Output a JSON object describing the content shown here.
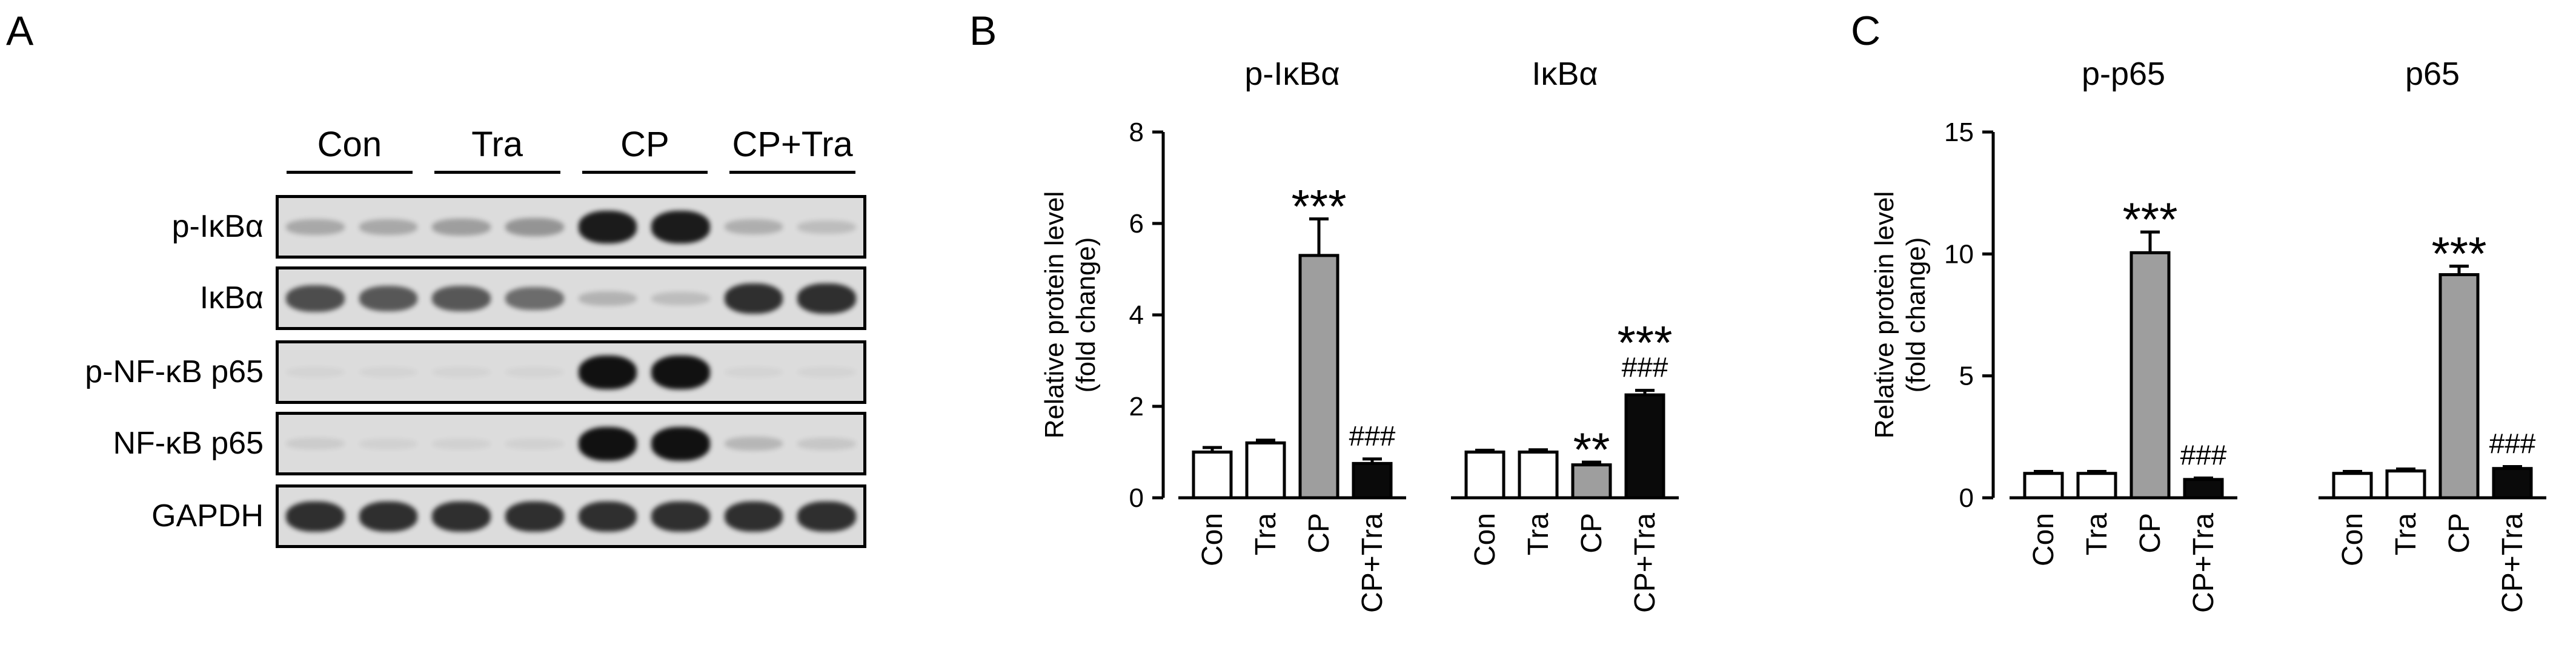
{
  "panel_labels": {
    "a": "A",
    "b": "B",
    "c": "C"
  },
  "blot": {
    "groups": [
      "Con",
      "Tra",
      "CP",
      "CP+Tra"
    ],
    "rows": [
      {
        "label": "p-IκBα",
        "band": [
          0.25,
          0.25,
          0.3,
          0.35,
          0.95,
          0.95,
          0.22,
          0.15
        ]
      },
      {
        "label": "IκBα",
        "band": [
          0.7,
          0.65,
          0.65,
          0.55,
          0.2,
          0.15,
          0.85,
          0.85
        ]
      },
      {
        "label": "p-NF-κB p65",
        "band": [
          0.04,
          0.04,
          0.03,
          0.03,
          1.0,
          1.0,
          0.02,
          0.02
        ]
      },
      {
        "label": "NF-κB p65",
        "band": [
          0.08,
          0.05,
          0.05,
          0.05,
          1.0,
          1.0,
          0.18,
          0.1
        ]
      },
      {
        "label": "GAPDH",
        "band": [
          0.85,
          0.85,
          0.85,
          0.85,
          0.85,
          0.85,
          0.85,
          0.85
        ]
      }
    ]
  },
  "chart_data": [
    {
      "type": "bar",
      "panel": "B",
      "ylabel": "Relative protein level\n(fold change)",
      "ylim": [
        0,
        8
      ],
      "yticks": [
        0,
        2,
        4,
        6,
        8
      ],
      "grid": false,
      "groups": [
        {
          "title": "p-IκBα",
          "categories": [
            "Con",
            "Tra",
            "CP",
            "CP+Tra"
          ],
          "values": [
            1.0,
            1.2,
            5.3,
            0.75
          ],
          "errors": [
            0.1,
            0.06,
            0.8,
            0.1
          ],
          "annotations": [
            "",
            "",
            "***",
            "###"
          ]
        },
        {
          "title": "IκBα",
          "categories": [
            "Con",
            "Tra",
            "CP",
            "CP+Tra"
          ],
          "values": [
            1.0,
            1.0,
            0.72,
            2.25
          ],
          "errors": [
            0.04,
            0.05,
            0.06,
            0.1
          ],
          "annotations": [
            "",
            "",
            "**",
            "***\n###"
          ]
        }
      ],
      "bar_colors": [
        "#ffffff",
        "#ffffff",
        "#9e9e9e",
        "#0a0a0a"
      ]
    },
    {
      "type": "bar",
      "panel": "C",
      "ylabel": "Relative protein level\n(fold change)",
      "ylim": [
        0,
        15
      ],
      "yticks": [
        0,
        5,
        10,
        15
      ],
      "grid": false,
      "groups": [
        {
          "title": "p-p65",
          "categories": [
            "Con",
            "Tra",
            "CP",
            "CP+Tra"
          ],
          "values": [
            1.0,
            1.0,
            10.05,
            0.75
          ],
          "errors": [
            0.08,
            0.08,
            0.85,
            0.06
          ],
          "annotations": [
            "",
            "",
            "***",
            "###"
          ]
        },
        {
          "title": "p65",
          "categories": [
            "Con",
            "Tra",
            "CP",
            "CP+Tra"
          ],
          "values": [
            1.0,
            1.1,
            9.15,
            1.2
          ],
          "errors": [
            0.08,
            0.08,
            0.35,
            0.08
          ],
          "annotations": [
            "",
            "",
            "***",
            "###"
          ]
        }
      ],
      "bar_colors": [
        "#ffffff",
        "#ffffff",
        "#9e9e9e",
        "#0a0a0a"
      ]
    }
  ]
}
